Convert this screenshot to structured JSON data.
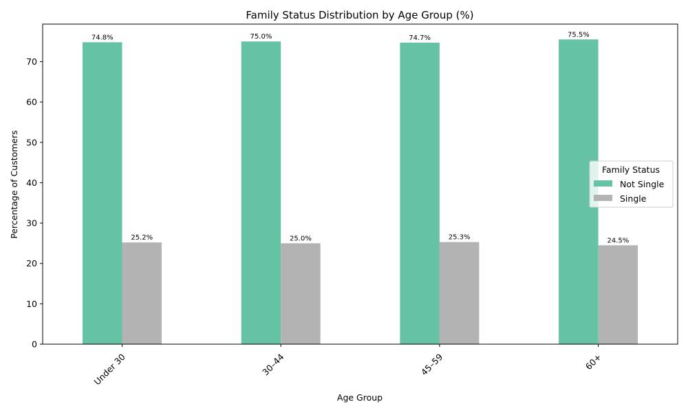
{
  "chart_data": {
    "type": "bar",
    "title": "Family Status Distribution by Age Group (%)",
    "xlabel": "Age Group",
    "ylabel": "Percentage of Customers",
    "categories": [
      "Under 30",
      "30–44",
      "45–59",
      "60+"
    ],
    "series": [
      {
        "name": "Not Single",
        "values": [
          74.8,
          75.0,
          74.7,
          75.5
        ],
        "labels": [
          "74.8%",
          "75.0%",
          "74.7%",
          "75.5%"
        ],
        "color": "#66c2a5"
      },
      {
        "name": "Single",
        "values": [
          25.2,
          25.0,
          25.3,
          24.5
        ],
        "labels": [
          "25.2%",
          "25.0%",
          "25.3%",
          "24.5%"
        ],
        "color": "#b3b3b3"
      }
    ],
    "ylim": [
      0,
      79.3
    ],
    "yticks": [
      0,
      10,
      20,
      30,
      40,
      50,
      60,
      70
    ],
    "legend": {
      "title": "Family Status",
      "placement": "center-right"
    },
    "grid": false
  }
}
